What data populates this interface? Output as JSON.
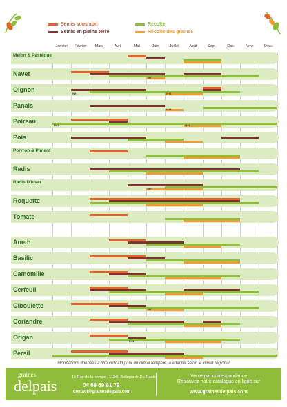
{
  "colors": {
    "semis_abri": "#e4632a",
    "semis_terre": "#7e3531",
    "recolte": "#8dbf3b",
    "recolte_graines": "#f09a3a",
    "row_band": "#dcebc2",
    "row_name": "#2f6b25",
    "footer": "#8fbc3a"
  },
  "icons": [
    "leaf-sprig-left-icon",
    "leaf-sprig-right-icon"
  ],
  "legend": {
    "semis_abri": "Semis sous abri",
    "semis_terre": "Semis en pleine terre",
    "recolte": "Récolte",
    "recolte_graines": "Récolte des graines"
  },
  "months": [
    "Janvier",
    "Février",
    "Mars",
    "Avril",
    "Mai",
    "Juin",
    "Juillet",
    "Août",
    "Sept.",
    "Oct.",
    "Nov.",
    "Déc."
  ],
  "crops": [
    {
      "name": "Melon & Pastèque",
      "bars": [
        {
          "type": "semis_abri",
          "from": 4,
          "to": 5
        },
        {
          "type": "semis_terre",
          "from": 5,
          "to": 6
        },
        {
          "type": "recolte",
          "from": 7,
          "to": 9
        },
        {
          "type": "recolte_graines",
          "from": 7,
          "to": 9
        }
      ]
    },
    {
      "name": "Navet",
      "bars": [
        {
          "type": "semis_abri",
          "from": 1,
          "to": 3
        },
        {
          "type": "semis_terre",
          "from": 2,
          "to": 6
        },
        {
          "type": "semis_terre",
          "from": 7,
          "to": 9
        },
        {
          "type": "recolte",
          "from": 3,
          "to": 11
        },
        {
          "type": "recolte_graines",
          "from": 5,
          "to": 6
        }
      ],
      "note": {
        "text": "N+1",
        "month": 5
      }
    },
    {
      "name": "Oignon",
      "bars": [
        {
          "type": "semis_abri",
          "from": 8,
          "to": 9
        },
        {
          "type": "semis_terre",
          "from": 1,
          "to": 5
        },
        {
          "type": "semis_terre",
          "from": 8,
          "to": 9
        },
        {
          "type": "recolte",
          "from": 2,
          "to": 10
        },
        {
          "type": "recolte_graines",
          "from": 6,
          "to": 8
        }
      ],
      "note": {
        "text": "N+1",
        "month": 1
      },
      "note2": {
        "text": "N+1",
        "month": 6
      }
    },
    {
      "name": "Panais",
      "bars": [
        {
          "type": "semis_terre",
          "from": 2,
          "to": 6
        },
        {
          "type": "recolte",
          "from": 8,
          "to": 12
        },
        {
          "type": "recolte_graines",
          "from": 6,
          "to": 7
        }
      ],
      "note": {
        "text": "N+1",
        "month": 6
      }
    },
    {
      "name": "Poireau",
      "bars": [
        {
          "type": "semis_abri",
          "from": 1,
          "to": 4
        },
        {
          "type": "semis_terre",
          "from": 3,
          "to": 4
        },
        {
          "type": "recolte",
          "from": 0,
          "to": 12
        },
        {
          "type": "recolte_graines",
          "from": 7,
          "to": 9
        }
      ],
      "note": {
        "text": "N+1",
        "month": 0
      },
      "note2": {
        "text": "N+1",
        "month": 7
      }
    },
    {
      "name": "Pois",
      "bars": [
        {
          "type": "semis_terre",
          "from": 1,
          "to": 5
        },
        {
          "type": "semis_terre",
          "from": 9,
          "to": 11
        },
        {
          "type": "recolte",
          "from": 4,
          "to": 7
        },
        {
          "type": "recolte_graines",
          "from": 6,
          "to": 8
        }
      ]
    },
    {
      "name": "Poivron & Piment",
      "bars": [
        {
          "type": "semis_abri",
          "from": 2,
          "to": 4
        },
        {
          "type": "recolte",
          "from": 5,
          "to": 10
        },
        {
          "type": "recolte_graines",
          "from": 7,
          "to": 10
        }
      ]
    },
    {
      "name": "Radis",
      "bars": [
        {
          "type": "semis_terre",
          "from": 2,
          "to": 10
        },
        {
          "type": "recolte",
          "from": 3,
          "to": 11
        },
        {
          "type": "recolte_graines",
          "from": 5,
          "to": 8
        }
      ]
    },
    {
      "name": "Radis D'hiver",
      "bars": [
        {
          "type": "semis_terre",
          "from": 4,
          "to": 8
        },
        {
          "type": "recolte",
          "from": 6,
          "to": 12
        },
        {
          "type": "recolte_graines",
          "from": 5,
          "to": 8
        }
      ],
      "note": {
        "text": "N+1",
        "month": 5
      }
    },
    {
      "name": "Roquette",
      "bars": [
        {
          "type": "semis_abri",
          "from": 2,
          "to": 10
        },
        {
          "type": "semis_terre",
          "from": 3,
          "to": 10
        },
        {
          "type": "recolte",
          "from": 2,
          "to": 11
        },
        {
          "type": "recolte_graines",
          "from": 5,
          "to": 8
        }
      ]
    },
    {
      "name": "Tomate",
      "bars": [
        {
          "type": "semis_abri",
          "from": 2,
          "to": 4
        },
        {
          "type": "recolte",
          "from": 6,
          "to": 10
        },
        {
          "type": "recolte_graines",
          "from": 7,
          "to": 10
        }
      ]
    },
    {
      "name": "Aneth",
      "bars": [
        {
          "type": "semis_abri",
          "from": 3,
          "to": 5
        },
        {
          "type": "semis_terre",
          "from": 4,
          "to": 7
        },
        {
          "type": "recolte",
          "from": 5,
          "to": 10
        },
        {
          "type": "recolte_graines",
          "from": 7,
          "to": 9
        }
      ]
    },
    {
      "name": "Basilic",
      "bars": [
        {
          "type": "semis_abri",
          "from": 2,
          "to": 5
        },
        {
          "type": "semis_terre",
          "from": 4,
          "to": 6
        },
        {
          "type": "recolte",
          "from": 5,
          "to": 10
        },
        {
          "type": "recolte_graines",
          "from": 7,
          "to": 10
        }
      ]
    },
    {
      "name": "Camomille",
      "bars": [
        {
          "type": "semis_abri",
          "from": 2,
          "to": 4
        },
        {
          "type": "semis_terre",
          "from": 3,
          "to": 5
        },
        {
          "type": "recolte",
          "from": 4,
          "to": 10
        },
        {
          "type": "recolte_graines",
          "from": 6,
          "to": 9
        }
      ]
    },
    {
      "name": "Cerfeuil",
      "bars": [
        {
          "type": "semis_abri",
          "from": 2,
          "to": 4
        },
        {
          "type": "semis_terre",
          "from": 2,
          "to": 5
        },
        {
          "type": "semis_terre",
          "from": 7,
          "to": 10
        },
        {
          "type": "recolte",
          "from": 3,
          "to": 11
        },
        {
          "type": "recolte_graines",
          "from": 6,
          "to": 8
        }
      ]
    },
    {
      "name": "Ciboulette",
      "bars": [
        {
          "type": "semis_abri",
          "from": 1,
          "to": 4
        },
        {
          "type": "semis_terre",
          "from": 3,
          "to": 5
        },
        {
          "type": "recolte",
          "from": 4,
          "to": 11
        },
        {
          "type": "recolte_graines",
          "from": 5,
          "to": 7
        }
      ],
      "note": {
        "text": "N+1",
        "month": 5
      }
    },
    {
      "name": "Coriandre",
      "bars": [
        {
          "type": "semis_abri",
          "from": 2,
          "to": 4
        },
        {
          "type": "semis_terre",
          "from": 3,
          "to": 7
        },
        {
          "type": "semis_terre",
          "from": 8,
          "to": 9
        },
        {
          "type": "recolte",
          "from": 4,
          "to": 10
        },
        {
          "type": "recolte_graines",
          "from": 7,
          "to": 9
        }
      ]
    },
    {
      "name": "Origan",
      "bars": [
        {
          "type": "semis_abri",
          "from": 2,
          "to": 4
        },
        {
          "type": "semis_terre",
          "from": 4,
          "to": 5
        },
        {
          "type": "recolte",
          "from": 3,
          "to": 10
        },
        {
          "type": "recolte_graines",
          "from": 6,
          "to": 9
        }
      ],
      "note": {
        "text": "N+1",
        "month": 4
      }
    },
    {
      "name": "Persil",
      "bars": [
        {
          "type": "semis_abri",
          "from": 1,
          "to": 4
        },
        {
          "type": "semis_terre",
          "from": 3,
          "to": 7
        },
        {
          "type": "recolte",
          "from": 0,
          "to": 12
        },
        {
          "type": "recolte_graines",
          "from": 6,
          "to": 8
        }
      ]
    }
  ],
  "info": "Informations données à titre indicatif pour un climat tempéré, à adapter selon le climat régional.",
  "footer": {
    "logo_small": "graines",
    "logo_big": "delpais",
    "address": "16 Rue de la pompe , 11240 Bellegarde-Du-Razès",
    "phone": "04 68 69 81 79",
    "email": "contact@grainesdelpais.com",
    "vpc": "Vente par correspondance",
    "catalogue": "Retrouvez notre catalogue en ligne sur",
    "website": "www.grainesdelpais.com"
  }
}
